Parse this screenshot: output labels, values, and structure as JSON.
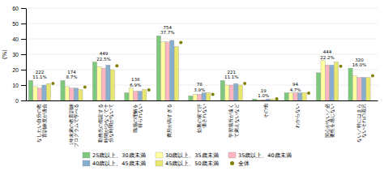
{
  "chart_data": {
    "type": "bar",
    "categories": [
      "なしたい自分の教育訓練度が適合",
      "1年未満の教育訓練プログラムで学べる",
      "勤務先の指定する時間が少なくて十分な時間がないて",
      "職場の理解を得られない",
      "費用が高すぎる",
      "効果の前で評価されない",
      "学習場所が遠くて満えないなど",
      "その他",
      "わからない",
      "関心がない／必要性を感じない",
      "ない／特にはまらないそれの選沢"
    ],
    "series": [
      {
        "name": "25歳以上、30歳未満",
        "color": "#7DC87D",
        "values": [
          13,
          13,
          25,
          5,
          42,
          3,
          13,
          1,
          5,
          18,
          21
        ]
      },
      {
        "name": "30歳以上、35歳未満",
        "color": "#FFFFA0",
        "values": [
          9,
          9,
          22,
          8,
          38,
          4,
          10,
          0.5,
          5,
          26,
          16
        ]
      },
      {
        "name": "35歳以上、40歳未満",
        "color": "#FFB6C1",
        "values": [
          8,
          8,
          21,
          6,
          38,
          4,
          10,
          0.5,
          5,
          23,
          15
        ]
      },
      {
        "name": "40歳以上、45歳未満",
        "color": "#87AECF",
        "values": [
          10,
          8,
          23,
          6,
          39,
          5,
          11,
          1,
          5,
          23,
          15
        ]
      },
      {
        "name": "45歳以上、50歳未満",
        "color": "#E8E870",
        "values": [
          11,
          7,
          20,
          7,
          35,
          5,
          10,
          1,
          5,
          25,
          15
        ]
      },
      {
        "name": "全体",
        "color": "#808000",
        "type": "scatter",
        "marker": "circle",
        "values": [
          11.1,
          8.7,
          22.5,
          6.9,
          37.7,
          3.9,
          11.1,
          1.0,
          4.7,
          22.2,
          16.0
        ]
      }
    ],
    "annotations": [
      [
        "222",
        "11.1%"
      ],
      [
        "174",
        "8.7%"
      ],
      [
        "449",
        "22.5%"
      ],
      [
        "138",
        "6.9%"
      ],
      [
        "754",
        "37.7%"
      ],
      [
        "78",
        "3.9%"
      ],
      [
        "221",
        "11.1%"
      ],
      [
        "19",
        "1.0%"
      ],
      [
        "94",
        "4.7%"
      ],
      [
        "444",
        "22.2%"
      ],
      [
        "320",
        "16.0%"
      ]
    ],
    "ylabel": "(%)",
    "ylim": [
      0,
      60
    ],
    "yticks": [
      0,
      10,
      20,
      30,
      40,
      50,
      60
    ],
    "grid": true,
    "legend": "bottom"
  }
}
